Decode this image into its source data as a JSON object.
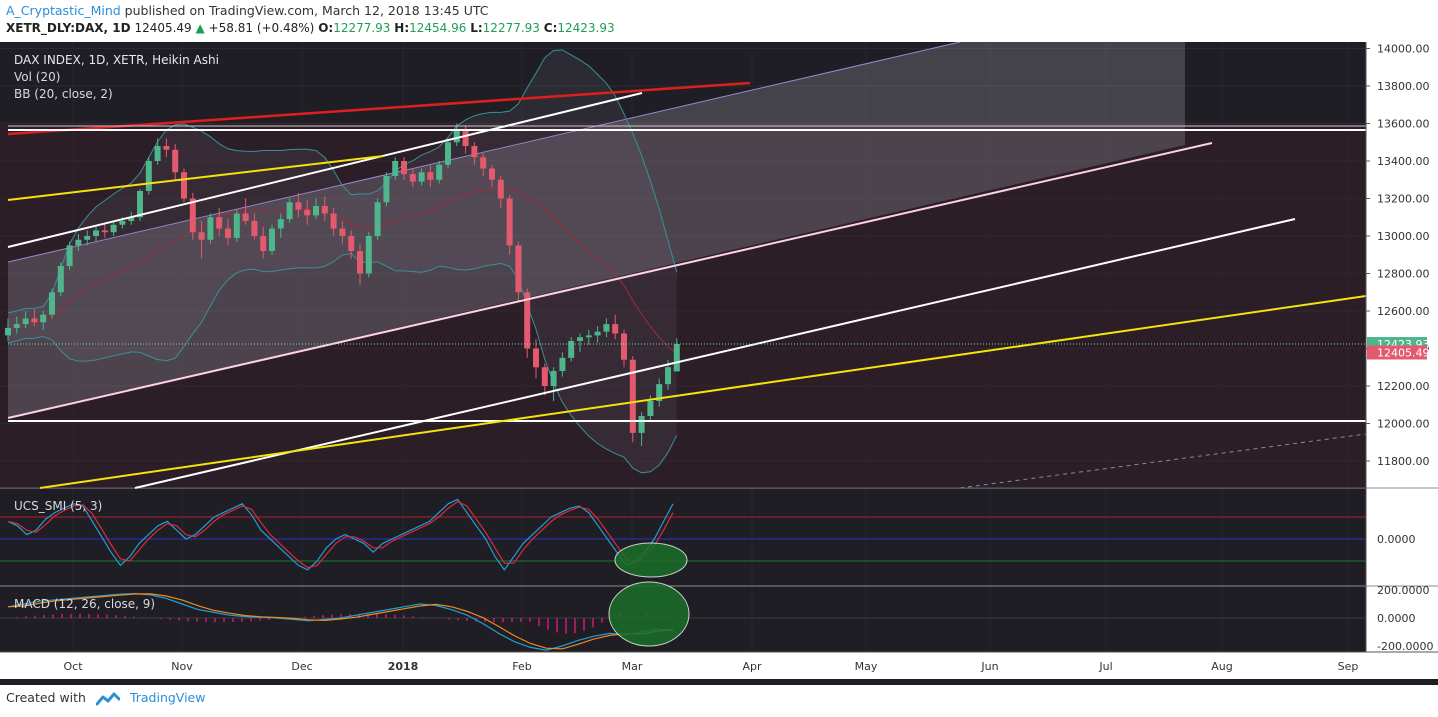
{
  "header": {
    "author": "A_Cryptastic_Mind",
    "published": "published on TradingView.com, March 12, 2018 13:45 UTC",
    "symbol": "XETR_DLY:DAX, 1D",
    "last": "12405.49",
    "change": "+58.81 (+0.48%)",
    "o_label": "O:",
    "o_value": "12277.93",
    "h_label": "H:",
    "h_value": "12454.96",
    "l_label": "L:",
    "l_value": "12277.93",
    "c_label": "C:",
    "c_value": "12423.93"
  },
  "legend": {
    "title": "DAX INDEX, 1D, XETR, Heikin Ashi",
    "vol": "Vol (20)",
    "bb": "BB (20, close, 2)",
    "smi": "UCS_SMI (5, 3)",
    "macd": "MACD (12, 26, close, 9)"
  },
  "footer": {
    "created_with": "Created with",
    "brand": "TradingView"
  },
  "colors": {
    "background": "#1f1e25",
    "bull": "#4fb58a",
    "bear": "#e35a6e",
    "bb_band": "#3a8f9a",
    "trend_white": "#ffffff",
    "trend_yellow": "#f5e30c",
    "trend_red": "#e01e1e",
    "channel_fill": "#c8c8d0",
    "price_up_tag": "#4fb58a",
    "price_down_tag": "#e35a6e",
    "ellipse_fill": "#1b6e2a"
  },
  "chart_data": [
    {
      "type": "candlestick",
      "title": "DAX INDEX, 1D, XETR, Heikin Ashi",
      "x_ticks": [
        "Oct",
        "Nov",
        "Dec",
        "2018",
        "Feb",
        "Mar",
        "Apr",
        "May",
        "Jun",
        "Jul",
        "Aug",
        "Sep"
      ],
      "y_ticks": [
        "14000.00",
        "13800.00",
        "13600.00",
        "13400.00",
        "13200.00",
        "13000.00",
        "12800.00",
        "12600.00",
        "12400.00",
        "12200.00",
        "12000.00",
        "11800.00"
      ],
      "ylim": [
        11640,
        14020
      ],
      "series": [
        {
          "name": "Heikin Ashi",
          "points": [
            {
              "o": 12470,
              "h": 12560,
              "l": 12440,
              "c": 12510
            },
            {
              "o": 12510,
              "h": 12570,
              "l": 12480,
              "c": 12530
            },
            {
              "o": 12530,
              "h": 12600,
              "l": 12510,
              "c": 12560
            },
            {
              "o": 12560,
              "h": 12610,
              "l": 12520,
              "c": 12540
            },
            {
              "o": 12540,
              "h": 12600,
              "l": 12500,
              "c": 12580
            },
            {
              "o": 12580,
              "h": 12720,
              "l": 12560,
              "c": 12700
            },
            {
              "o": 12700,
              "h": 12860,
              "l": 12680,
              "c": 12840
            },
            {
              "o": 12840,
              "h": 12970,
              "l": 12820,
              "c": 12950
            },
            {
              "o": 12950,
              "h": 13010,
              "l": 12920,
              "c": 12980
            },
            {
              "o": 12980,
              "h": 13030,
              "l": 12950,
              "c": 13000
            },
            {
              "o": 13000,
              "h": 13060,
              "l": 12970,
              "c": 13030
            },
            {
              "o": 13030,
              "h": 13070,
              "l": 12990,
              "c": 13020
            },
            {
              "o": 13020,
              "h": 13080,
              "l": 13000,
              "c": 13060
            },
            {
              "o": 13060,
              "h": 13100,
              "l": 13040,
              "c": 13080
            },
            {
              "o": 13080,
              "h": 13130,
              "l": 13060,
              "c": 13100
            },
            {
              "o": 13100,
              "h": 13250,
              "l": 13080,
              "c": 13240
            },
            {
              "o": 13240,
              "h": 13420,
              "l": 13220,
              "c": 13400
            },
            {
              "o": 13400,
              "h": 13520,
              "l": 13380,
              "c": 13480
            },
            {
              "o": 13480,
              "h": 13520,
              "l": 13420,
              "c": 13460
            },
            {
              "o": 13460,
              "h": 13490,
              "l": 13300,
              "c": 13340
            },
            {
              "o": 13340,
              "h": 13360,
              "l": 13180,
              "c": 13200
            },
            {
              "o": 13200,
              "h": 13230,
              "l": 12980,
              "c": 13020
            },
            {
              "o": 13020,
              "h": 13080,
              "l": 12880,
              "c": 12980
            },
            {
              "o": 12980,
              "h": 13120,
              "l": 12960,
              "c": 13100
            },
            {
              "o": 13100,
              "h": 13150,
              "l": 13000,
              "c": 13040
            },
            {
              "o": 13040,
              "h": 13090,
              "l": 12950,
              "c": 12990
            },
            {
              "o": 12990,
              "h": 13140,
              "l": 12970,
              "c": 13120
            },
            {
              "o": 13120,
              "h": 13200,
              "l": 13060,
              "c": 13080
            },
            {
              "o": 13080,
              "h": 13120,
              "l": 12980,
              "c": 13000
            },
            {
              "o": 13000,
              "h": 13050,
              "l": 12880,
              "c": 12920
            },
            {
              "o": 12920,
              "h": 13060,
              "l": 12900,
              "c": 13040
            },
            {
              "o": 13040,
              "h": 13120,
              "l": 12990,
              "c": 13090
            },
            {
              "o": 13090,
              "h": 13200,
              "l": 13070,
              "c": 13180
            },
            {
              "o": 13180,
              "h": 13230,
              "l": 13100,
              "c": 13140
            },
            {
              "o": 13140,
              "h": 13190,
              "l": 13060,
              "c": 13110
            },
            {
              "o": 13110,
              "h": 13200,
              "l": 13090,
              "c": 13160
            },
            {
              "o": 13160,
              "h": 13210,
              "l": 13080,
              "c": 13120
            },
            {
              "o": 13120,
              "h": 13150,
              "l": 13000,
              "c": 13040
            },
            {
              "o": 13040,
              "h": 13080,
              "l": 12960,
              "c": 13000
            },
            {
              "o": 13000,
              "h": 13030,
              "l": 12880,
              "c": 12920
            },
            {
              "o": 12920,
              "h": 12960,
              "l": 12740,
              "c": 12800
            },
            {
              "o": 12800,
              "h": 13020,
              "l": 12780,
              "c": 13000
            },
            {
              "o": 13000,
              "h": 13200,
              "l": 12980,
              "c": 13180
            },
            {
              "o": 13180,
              "h": 13340,
              "l": 13160,
              "c": 13320
            },
            {
              "o": 13320,
              "h": 13420,
              "l": 13300,
              "c": 13400
            },
            {
              "o": 13400,
              "h": 13420,
              "l": 13300,
              "c": 13330
            },
            {
              "o": 13330,
              "h": 13360,
              "l": 13260,
              "c": 13290
            },
            {
              "o": 13290,
              "h": 13360,
              "l": 13270,
              "c": 13340
            },
            {
              "o": 13340,
              "h": 13380,
              "l": 13260,
              "c": 13300
            },
            {
              "o": 13300,
              "h": 13400,
              "l": 13280,
              "c": 13380
            },
            {
              "o": 13380,
              "h": 13520,
              "l": 13360,
              "c": 13500
            },
            {
              "o": 13500,
              "h": 13600,
              "l": 13480,
              "c": 13570
            },
            {
              "o": 13570,
              "h": 13590,
              "l": 13440,
              "c": 13480
            },
            {
              "o": 13480,
              "h": 13500,
              "l": 13380,
              "c": 13420
            },
            {
              "o": 13420,
              "h": 13440,
              "l": 13320,
              "c": 13360
            },
            {
              "o": 13360,
              "h": 13380,
              "l": 13260,
              "c": 13300
            },
            {
              "o": 13300,
              "h": 13320,
              "l": 13150,
              "c": 13200
            },
            {
              "o": 13200,
              "h": 13220,
              "l": 12900,
              "c": 12950
            },
            {
              "o": 12950,
              "h": 12970,
              "l": 12650,
              "c": 12700
            },
            {
              "o": 12700,
              "h": 12720,
              "l": 12350,
              "c": 12400
            },
            {
              "o": 12400,
              "h": 12450,
              "l": 12240,
              "c": 12300
            },
            {
              "o": 12300,
              "h": 12320,
              "l": 12150,
              "c": 12200
            },
            {
              "o": 12200,
              "h": 12300,
              "l": 12120,
              "c": 12280
            },
            {
              "o": 12280,
              "h": 12380,
              "l": 12250,
              "c": 12350
            },
            {
              "o": 12350,
              "h": 12460,
              "l": 12330,
              "c": 12440
            },
            {
              "o": 12440,
              "h": 12480,
              "l": 12380,
              "c": 12460
            },
            {
              "o": 12460,
              "h": 12500,
              "l": 12420,
              "c": 12470
            },
            {
              "o": 12470,
              "h": 12520,
              "l": 12430,
              "c": 12490
            },
            {
              "o": 12490,
              "h": 12560,
              "l": 12460,
              "c": 12530
            },
            {
              "o": 12530,
              "h": 12580,
              "l": 12450,
              "c": 12480
            },
            {
              "o": 12480,
              "h": 12500,
              "l": 12300,
              "c": 12340
            },
            {
              "o": 12340,
              "h": 12360,
              "l": 11900,
              "c": 11950
            },
            {
              "o": 11950,
              "h": 12060,
              "l": 11880,
              "c": 12040
            },
            {
              "o": 12040,
              "h": 12150,
              "l": 12010,
              "c": 12120
            },
            {
              "o": 12120,
              "h": 12240,
              "l": 12090,
              "c": 12210
            },
            {
              "o": 12210,
              "h": 12340,
              "l": 12180,
              "c": 12300
            },
            {
              "o": 12277.93,
              "h": 12454.96,
              "l": 12277.93,
              "c": 12423.93
            }
          ]
        },
        {
          "name": "BB (20, close, 2)",
          "kind": "bollinger"
        }
      ],
      "price_labels": [
        "12423.93",
        "12405.49"
      ]
    },
    {
      "type": "line",
      "title": "UCS_SMI (5, 3)",
      "y_ticks": [
        "0.0000"
      ],
      "ylim": [
        -120,
        120
      ]
    },
    {
      "type": "line",
      "title": "MACD (12, 26, close, 9)",
      "y_ticks": [
        "200.0000",
        "0.0000",
        "-200.0000"
      ],
      "ylim": [
        -260,
        250
      ]
    }
  ]
}
